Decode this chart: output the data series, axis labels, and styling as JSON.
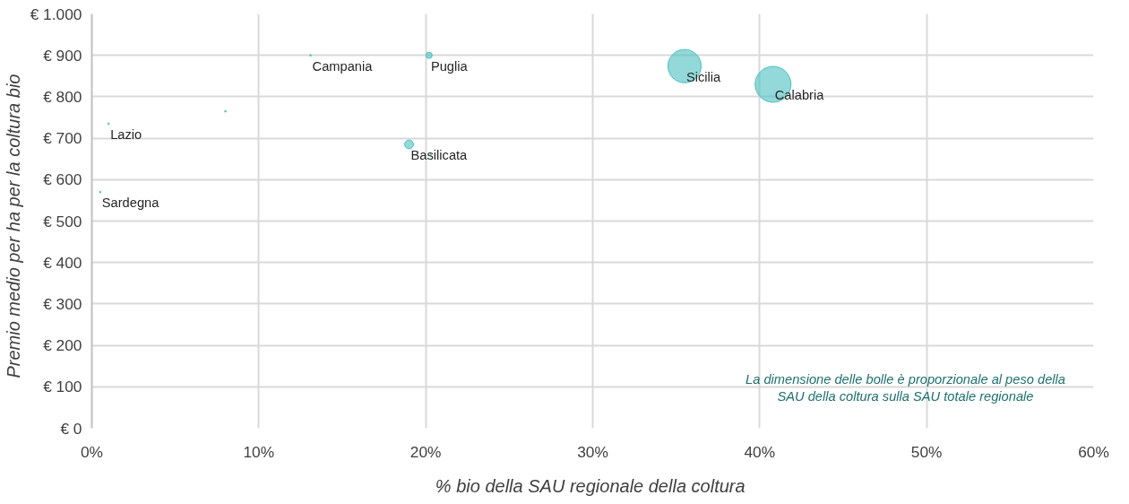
{
  "chart_data": {
    "type": "bubble",
    "xlabel": "%  bio della SAU regionale della coltura",
    "ylabel": "Premio medio   per ha per la coltura bio",
    "x": [
      13.1,
      20.2,
      1.0,
      19.0,
      0.5,
      35.5,
      40.8,
      8.0,
      20.3
    ],
    "series": [
      {
        "color": "#4bbfbf",
        "values": [
          900,
          900,
          735,
          685,
          570,
          874,
          830,
          765,
          660
        ],
        "sizes": [
          0.002,
          0.03,
          0.002,
          0.06,
          0.002,
          0.86,
          1,
          0.002,
          0.002
        ]
      }
    ],
    "xlim": [
      0,
      60
    ],
    "ylim": [
      0,
      1000
    ],
    "xticks": [
      {
        "value": 0,
        "label": "0%"
      },
      {
        "value": 10,
        "label": "10%"
      },
      {
        "value": 20,
        "label": "20%"
      },
      {
        "value": 30,
        "label": "30%"
      },
      {
        "value": 40,
        "label": "40%"
      },
      {
        "value": 50,
        "label": "50%"
      },
      {
        "value": 60,
        "label": "60%"
      }
    ],
    "yticks": [
      {
        "value": 0,
        "label": "€ 0"
      },
      {
        "value": 100,
        "label": "€ 100"
      },
      {
        "value": 200,
        "label": "€ 200"
      },
      {
        "value": 300,
        "label": "€ 300"
      },
      {
        "value": 400,
        "label": "€ 400"
      },
      {
        "value": 500,
        "label": "€ 500"
      },
      {
        "value": 600,
        "label": "€ 600"
      },
      {
        "value": 700,
        "label": "€ 700"
      },
      {
        "value": 800,
        "label": "€ 800"
      },
      {
        "value": 900,
        "label": "€ 900"
      },
      {
        "value": 1000,
        "label": "€ 1.000"
      }
    ],
    "grid": true,
    "annotations": [
      {
        "text": "Campania",
        "x": 13.1,
        "y": 900
      },
      {
        "text": "Puglia",
        "x": 20.2,
        "y": 900
      },
      {
        "text": "Lazio",
        "x": 1.0,
        "y": 735
      },
      {
        "text": "Basilicata",
        "x": 19.0,
        "y": 685
      },
      {
        "text": "Sardegna",
        "x": 0.5,
        "y": 570
      },
      {
        "text": "Sicilia",
        "x": 35.5,
        "y": 874
      },
      {
        "text": "Calabria",
        "x": 40.8,
        "y": 830
      },
      "La dimensione delle bolle è proporzionale al peso della\nSAU della coltura sulla SAU totale regionale"
    ]
  }
}
